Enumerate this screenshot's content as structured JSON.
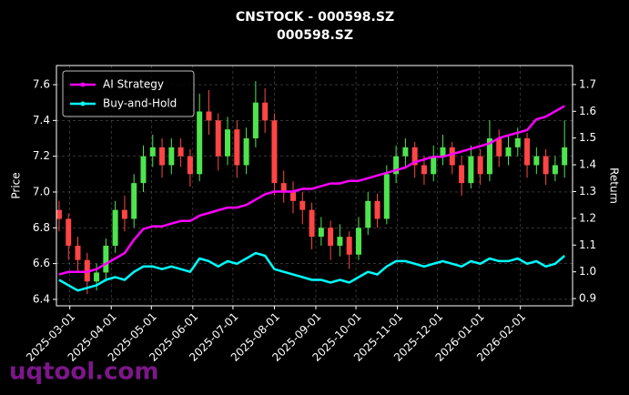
{
  "chart_data": {
    "type": "candlestick",
    "title": "CNSTOCK - 000598.SZ",
    "subtitle": "000598.SZ",
    "ylabel": "Price",
    "y2label": "Return",
    "watermark": "uqtool.com",
    "up_color": "#4ee44e",
    "down_color": "#ff4545",
    "grid": true,
    "legend": "upper left",
    "xlim": [
      "2025-02-19",
      "2026-03-12"
    ],
    "xticks": [
      "2025-03-01",
      "2025-04-01",
      "2025-05-01",
      "2025-06-01",
      "2025-07-01",
      "2025-08-01",
      "2025-09-01",
      "2025-10-01",
      "2025-11-01",
      "2025-12-01",
      "2026-01-01",
      "2026-02-01"
    ],
    "ylim": [
      6.364,
      7.707
    ],
    "yticks": [
      6.4,
      6.6,
      6.8,
      {
        "value": 7,
        "label": "7.0"
      },
      7.2,
      7.4,
      7.6
    ],
    "y2lim": [
      0.873,
      1.771
    ],
    "y2ticks": [
      0.9,
      {
        "value": 1,
        "label": "1.0"
      },
      1.1,
      1.2,
      1.3,
      1.4,
      1.5,
      1.6,
      1.7
    ],
    "x": [
      "2025-02-21",
      "2025-02-28",
      "2025-03-07",
      "2025-03-14",
      "2025-03-21",
      "2025-03-28",
      "2025-04-04",
      "2025-04-11",
      "2025-04-18",
      "2025-04-25",
      "2025-05-02",
      "2025-05-09",
      "2025-05-16",
      "2025-05-23",
      "2025-05-30",
      "2025-06-06",
      "2025-06-13",
      "2025-06-20",
      "2025-06-27",
      "2025-07-04",
      "2025-07-11",
      "2025-07-18",
      "2025-07-25",
      "2025-08-01",
      "2025-08-08",
      "2025-08-15",
      "2025-08-22",
      "2025-08-29",
      "2025-09-05",
      "2025-09-12",
      "2025-09-19",
      "2025-09-26",
      "2025-10-03",
      "2025-10-10",
      "2025-10-17",
      "2025-10-24",
      "2025-10-31",
      "2025-11-07",
      "2025-11-14",
      "2025-11-21",
      "2025-11-28",
      "2025-12-05",
      "2025-12-12",
      "2025-12-19",
      "2025-12-26",
      "2026-01-02",
      "2026-01-09",
      "2026-01-16",
      "2026-01-23",
      "2026-01-30",
      "2026-02-06",
      "2026-02-13",
      "2026-02-20",
      "2026-02-27",
      "2026-03-06"
    ],
    "open": [
      6.9,
      6.85,
      6.7,
      6.62,
      6.5,
      6.55,
      6.7,
      6.9,
      6.85,
      7.05,
      7.2,
      7.25,
      7.15,
      7.25,
      7.2,
      7.1,
      7.45,
      7.4,
      7.2,
      7.35,
      7.15,
      7.3,
      7.5,
      7.4,
      7.05,
      7.0,
      6.95,
      6.9,
      6.75,
      6.8,
      6.7,
      6.75,
      6.65,
      6.8,
      6.95,
      6.85,
      7.1,
      7.2,
      7.25,
      7.15,
      7.1,
      7.2,
      7.25,
      7.15,
      7.05,
      7.2,
      7.1,
      7.3,
      7.2,
      7.25,
      7.3,
      7.15,
      7.2,
      7.1,
      7.15
    ],
    "high": [
      6.95,
      6.88,
      6.75,
      6.66,
      6.6,
      6.74,
      6.95,
      6.98,
      7.1,
      7.26,
      7.32,
      7.3,
      7.3,
      7.3,
      7.24,
      7.55,
      7.57,
      7.44,
      7.42,
      7.4,
      7.36,
      7.62,
      7.58,
      7.44,
      7.12,
      7.06,
      7.0,
      6.94,
      6.86,
      6.84,
      6.82,
      6.78,
      6.86,
      7.0,
      6.99,
      7.15,
      7.26,
      7.3,
      7.28,
      7.2,
      7.26,
      7.32,
      7.28,
      7.2,
      7.26,
      7.24,
      7.4,
      7.35,
      7.32,
      7.36,
      7.33,
      7.25,
      7.24,
      7.2,
      7.4
    ],
    "low": [
      6.78,
      6.62,
      6.55,
      6.43,
      6.45,
      6.5,
      6.66,
      6.78,
      6.8,
      7.0,
      7.14,
      7.08,
      7.1,
      7.14,
      7.03,
      7.06,
      7.32,
      7.12,
      7.15,
      7.08,
      7.1,
      7.25,
      7.33,
      6.98,
      6.94,
      6.88,
      6.82,
      6.68,
      6.7,
      6.62,
      6.64,
      6.57,
      6.62,
      6.76,
      6.8,
      6.82,
      7.05,
      7.14,
      7.08,
      7.04,
      7.06,
      7.15,
      7.1,
      6.98,
      7.02,
      7.04,
      7.06,
      7.14,
      7.15,
      7.2,
      7.08,
      7.1,
      7.04,
      7.06,
      7.08
    ],
    "close": [
      6.85,
      6.7,
      6.62,
      6.5,
      6.55,
      6.7,
      6.9,
      6.85,
      7.05,
      7.2,
      7.25,
      7.15,
      7.25,
      7.2,
      7.1,
      7.45,
      7.4,
      7.2,
      7.35,
      7.15,
      7.3,
      7.5,
      7.4,
      7.05,
      7.0,
      6.95,
      6.9,
      6.75,
      6.8,
      6.7,
      6.75,
      6.65,
      6.8,
      6.95,
      6.85,
      7.1,
      7.2,
      7.25,
      7.15,
      7.1,
      7.2,
      7.25,
      7.15,
      7.05,
      7.2,
      7.1,
      7.3,
      7.2,
      7.25,
      7.3,
      7.15,
      7.2,
      7.1,
      7.15,
      7.25
    ],
    "series": [
      {
        "name": "AI Strategy",
        "color": "#ff00ff",
        "axis": "y2",
        "values": [
          0.99,
          1.0,
          1.0,
          1.0,
          1.01,
          1.03,
          1.05,
          1.07,
          1.12,
          1.16,
          1.17,
          1.17,
          1.18,
          1.19,
          1.19,
          1.21,
          1.22,
          1.23,
          1.24,
          1.24,
          1.25,
          1.27,
          1.29,
          1.3,
          1.3,
          1.3,
          1.31,
          1.31,
          1.32,
          1.33,
          1.33,
          1.34,
          1.34,
          1.35,
          1.36,
          1.37,
          1.38,
          1.39,
          1.41,
          1.42,
          1.43,
          1.43,
          1.44,
          1.45,
          1.46,
          1.47,
          1.48,
          1.5,
          1.51,
          1.52,
          1.53,
          1.57,
          1.58,
          1.6,
          1.62
        ]
      },
      {
        "name": "Buy-and-Hold",
        "color": "#00ffff",
        "axis": "y2",
        "values": [
          0.97,
          0.95,
          0.93,
          0.94,
          0.95,
          0.97,
          0.98,
          0.97,
          1.0,
          1.02,
          1.02,
          1.01,
          1.02,
          1.01,
          1.0,
          1.05,
          1.04,
          1.02,
          1.04,
          1.03,
          1.05,
          1.07,
          1.06,
          1.01,
          1.0,
          0.99,
          0.98,
          0.97,
          0.97,
          0.96,
          0.97,
          0.96,
          0.98,
          1.0,
          0.99,
          1.02,
          1.04,
          1.04,
          1.03,
          1.02,
          1.03,
          1.04,
          1.03,
          1.02,
          1.04,
          1.03,
          1.05,
          1.04,
          1.04,
          1.05,
          1.03,
          1.04,
          1.02,
          1.03,
          1.06
        ]
      }
    ]
  }
}
